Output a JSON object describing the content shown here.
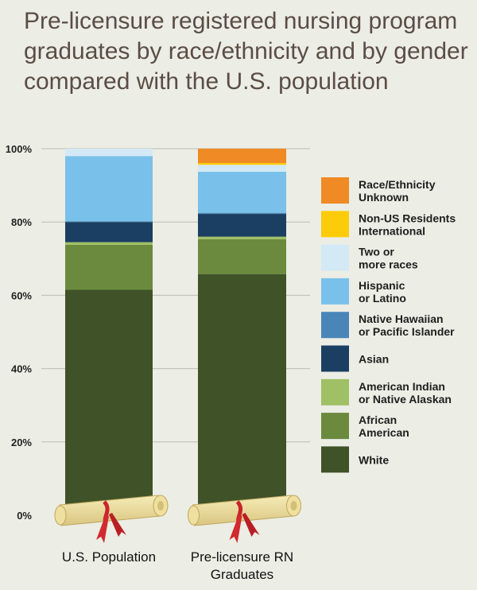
{
  "chart_data": {
    "type": "bar",
    "stacked": true,
    "title": "Pre-licensure registered nursing program graduates by race/ethnicity and by gender compared with the U.S. population",
    "categories": [
      [
        "U.S. Population"
      ],
      [
        "Pre-licensure RN",
        "Graduates"
      ]
    ],
    "y_ticks": [
      "0%",
      "20%",
      "40%",
      "60%",
      "80%",
      "100%"
    ],
    "ylim": [
      0,
      100
    ],
    "grid": true,
    "legend_position": "right",
    "series": [
      {
        "name": "White",
        "legend": [
          "White"
        ],
        "color": "#3f5228",
        "values": [
          61.5,
          65.8
        ]
      },
      {
        "name": "African American",
        "legend": [
          "African",
          "American"
        ],
        "color": "#6b8a3e",
        "values": [
          12.3,
          9.5
        ]
      },
      {
        "name": "American Indian or Native Alaskan",
        "legend": [
          "American Indian",
          "or Native Alaskan"
        ],
        "color": "#9fc064",
        "values": [
          0.7,
          0.7
        ]
      },
      {
        "name": "Asian",
        "legend": [
          "Asian"
        ],
        "color": "#1b3f62",
        "values": [
          5.5,
          6.2
        ]
      },
      {
        "name": "Native Hawaiian or Pacific Islander",
        "legend": [
          "Native Hawaiian",
          "or Pacific Islander"
        ],
        "color": "#4a85b8",
        "values": [
          0.2,
          0.3
        ]
      },
      {
        "name": "Hispanic or Latino",
        "legend": [
          "Hispanic",
          "or Latino"
        ],
        "color": "#79c1ea",
        "values": [
          17.8,
          11.2
        ]
      },
      {
        "name": "Two or more races",
        "legend": [
          "Two or",
          "more races"
        ],
        "color": "#d4e9f6",
        "values": [
          2.0,
          1.9
        ]
      },
      {
        "name": "Non-US Residents International",
        "legend": [
          "Non-US Residents",
          "International"
        ],
        "color": "#fccc0a",
        "values": [
          0.0,
          0.5
        ]
      },
      {
        "name": "Race/Ethnicity Unknown",
        "legend": [
          "Race/Ethnicity",
          "Unknown"
        ],
        "color": "#ef8a24",
        "values": [
          0.0,
          3.9
        ]
      }
    ]
  }
}
